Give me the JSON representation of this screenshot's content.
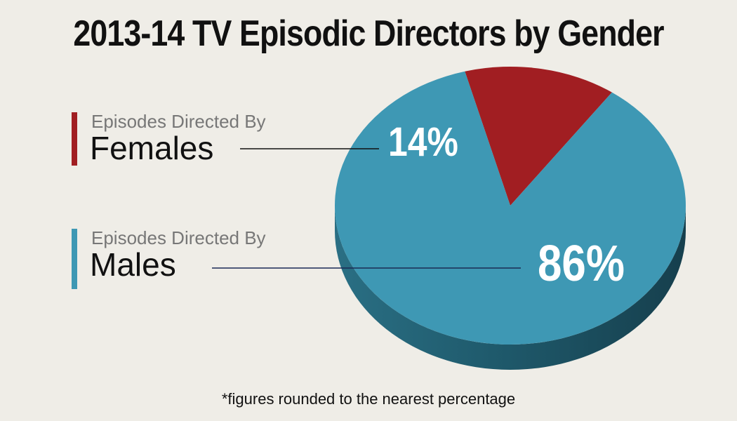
{
  "chart_data": {
    "type": "pie",
    "title": "2013-14 TV Episodic Directors by Gender",
    "slices": [
      {
        "subtitle": "Episodes Directed By",
        "label": "Females",
        "value": 14,
        "value_label": "14%",
        "color": "#a11e22"
      },
      {
        "subtitle": "Episodes Directed By",
        "label": "Males",
        "value": 86,
        "value_label": "86%",
        "color": "#3e98b4"
      }
    ],
    "footnote": "*figures rounded to the nearest percentage"
  }
}
